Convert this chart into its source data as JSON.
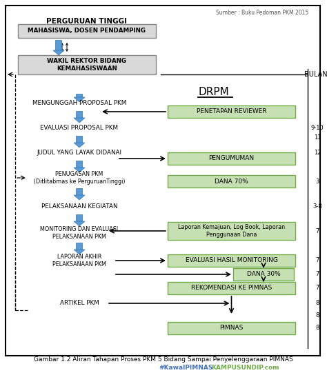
{
  "title": "Gambar 1.2 Aliran Tahapan Proses PKM 5 Bidang Sampai Penyelenggaraan PIMNAS",
  "source_text": "Sumber : Buku Pedoman PKM 2015",
  "watermark1": "#KawalPIMNAS",
  "watermark2": "KAMPUSUNDIP.com",
  "drpm_label": "DRPM",
  "bulan_label": "BULAN",
  "bg_color": "#ffffff",
  "green_box_color": "#c6e0b4",
  "green_box_border": "#70ad47",
  "gray_box_color": "#d9d9d9",
  "arrow_blue1": "#5b9bd5",
  "arrow_blue2": "#2e75b6",
  "bulan_labels": [
    "9-10",
    "11",
    "12",
    "3",
    "3-8",
    "7",
    "7",
    "7",
    "7",
    "8",
    "8"
  ]
}
